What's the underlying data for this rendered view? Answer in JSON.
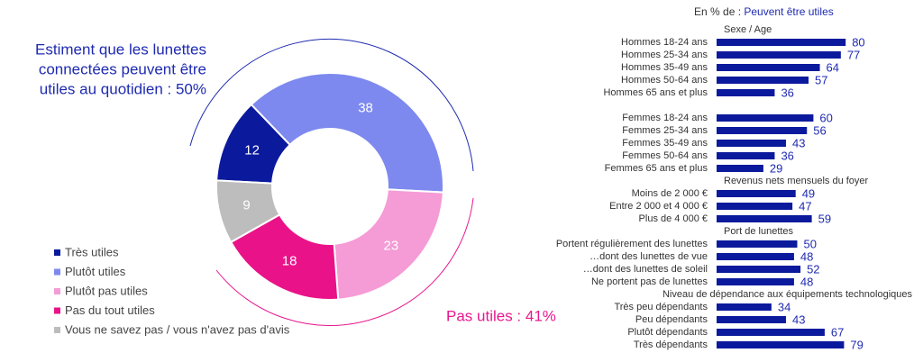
{
  "chart_data": [
    {
      "type": "donut",
      "categories": [
        "Très utiles",
        "Plutôt utiles",
        "Plutôt pas utiles",
        "Pas du tout utiles",
        "Vous ne savez pas / vous n'avez pas d'avis"
      ],
      "values": [
        12,
        38,
        23,
        18,
        9
      ],
      "colors": [
        "#0b1a9c",
        "#7d89ee",
        "#f59bd6",
        "#ea1289",
        "#bdbdbd"
      ],
      "annotations": [
        {
          "lines": [
            "Estiment que les lunettes",
            "connectées peuvent être",
            "utiles au quotidien : 50%"
          ],
          "color": "#1f2bb0"
        },
        {
          "lines": [
            "Pas utiles : 41%"
          ],
          "color": "#e8188f"
        }
      ]
    },
    {
      "type": "bar",
      "title_prefix": "En % de :",
      "title": "Peuvent être utiles",
      "color": "#0b1a9c",
      "groups": [
        {
          "title": "Sexe / Age",
          "categories": [
            "Hommes 18-24 ans",
            "Hommes 25-34 ans",
            "Hommes 35-49 ans",
            "Hommes 50-64 ans",
            "Hommes 65 ans et plus"
          ],
          "values": [
            80,
            77,
            64,
            57,
            36
          ]
        },
        {
          "categories": [
            "Femmes 18-24 ans",
            "Femmes 25-34 ans",
            "Femmes 35-49 ans",
            "Femmes 50-64 ans",
            "Femmes 65 ans et plus"
          ],
          "values": [
            60,
            56,
            43,
            36,
            29
          ]
        },
        {
          "title": "Revenus nets mensuels du foyer",
          "categories": [
            "Moins de 2 000 €",
            "Entre 2 000 et 4 000 €",
            "Plus de 4 000 €"
          ],
          "values": [
            49,
            47,
            59
          ]
        },
        {
          "title": "Port de lunettes",
          "categories": [
            "Portent régulièrement des lunettes",
            "…dont des lunettes de vue",
            "…dont des lunettes de soleil",
            "Ne portent pas de lunettes"
          ],
          "values": [
            50,
            48,
            52,
            48
          ]
        },
        {
          "title": "Niveau de dépendance aux équipements technologiques",
          "categories": [
            "Très peu dépendants",
            "Peu dépendants",
            "Plutôt dépendants",
            "Très dépendants"
          ],
          "values": [
            34,
            43,
            67,
            79
          ]
        }
      ]
    }
  ]
}
